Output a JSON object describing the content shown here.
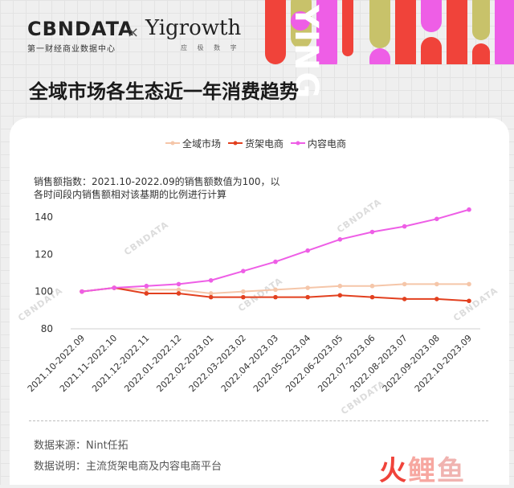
{
  "header": {
    "logo_cbn": "CBNDATA",
    "logo_cbn_sub": "第一财经商业数据中心",
    "logo_x": "×",
    "logo_yigrowth": "Yigrowth",
    "logo_yigrowth_sub": "应 极 数 字",
    "deco_word": "YING"
  },
  "title": "全域市场各生态近一年消费趋势",
  "note": {
    "line1": "销售额指数：2021.10-2022.09的销售额数值为100，以",
    "line2": "各时间段内销售额相对该基期的比例进行计算"
  },
  "watermark": "CBNDATA",
  "brand_watermark": "火鲤鱼",
  "footer": {
    "source": "数据来源：Nint任拓",
    "explain": "数据说明：主流货架电商及内容电商平台"
  },
  "colors": {
    "quanyu": "#f5c6a9",
    "huojia": "#e2401f",
    "neirong": "#ee5ee6"
  },
  "chart_data": {
    "type": "line",
    "title": "全域市场各生态近一年消费趋势",
    "xlabel": "",
    "ylabel": "",
    "ylim": [
      80,
      145
    ],
    "yticks": [
      "80",
      "100",
      "120",
      "140"
    ],
    "grid": false,
    "legend": "top-center",
    "categories": [
      "2021.10-2022.09",
      "2021.11-2022.10",
      "2021.12-2022.11",
      "2022.01-2022.12",
      "2022.02-2023.01",
      "2022.03-2023.02",
      "2022.04-2023.03",
      "2022.05-2023.04",
      "2022.06-2023.05",
      "2022.07-2023.06",
      "2022.08-2023.07",
      "2022.09-2023.08",
      "2022.10-2023.09"
    ],
    "series": [
      {
        "name": "全域市场",
        "color": "#f5c6a9",
        "values": [
          100,
          102,
          101,
          101,
          99,
          100,
          101,
          102,
          103,
          103,
          104,
          104,
          104
        ]
      },
      {
        "name": "货架电商",
        "color": "#e2401f",
        "values": [
          100,
          102,
          99,
          99,
          97,
          97,
          97,
          97,
          98,
          97,
          96,
          96,
          95
        ]
      },
      {
        "name": "内容电商",
        "color": "#ee5ee6",
        "values": [
          100,
          102,
          103,
          104,
          106,
          111,
          116,
          122,
          128,
          132,
          135,
          139,
          144
        ]
      }
    ]
  }
}
